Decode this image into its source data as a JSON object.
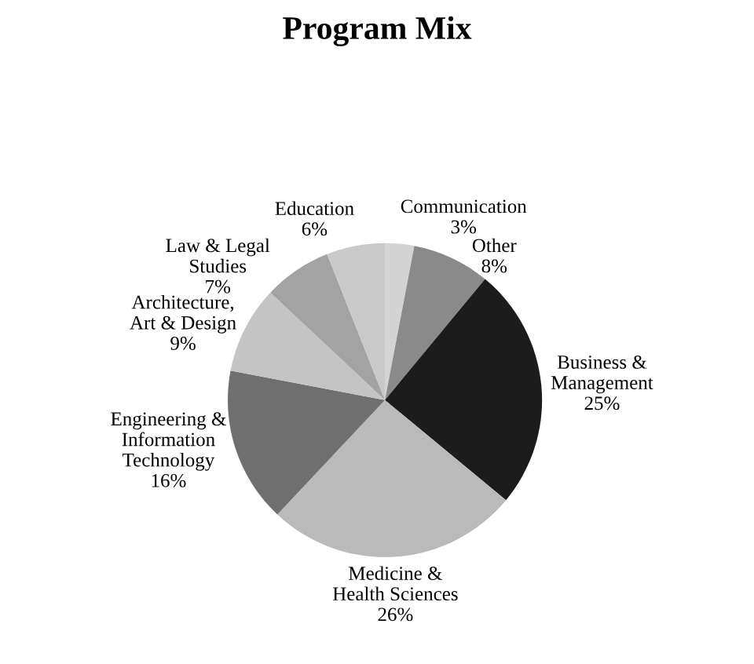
{
  "chart_data": {
    "type": "pie",
    "title": "Program Mix",
    "categories": [
      "Communication",
      "Other",
      "Business &\nManagement",
      "Medicine &\nHealth Sciences",
      "Engineering &\nInformation\nTechnology",
      "Architecture,\nArt & Design",
      "Law & Legal\nStudies",
      "Education"
    ],
    "values": [
      3,
      8,
      25,
      26,
      16,
      9,
      7,
      6
    ],
    "value_labels": [
      "3%",
      "8%",
      "25%",
      "26%",
      "16%",
      "9%",
      "7%",
      "6%"
    ],
    "colors": [
      "#d3d3d3",
      "#8a8a8a",
      "#1c1c1c",
      "#bababa",
      "#6f6f6f",
      "#c4c4c4",
      "#a3a3a3",
      "#c9c9c9"
    ]
  }
}
